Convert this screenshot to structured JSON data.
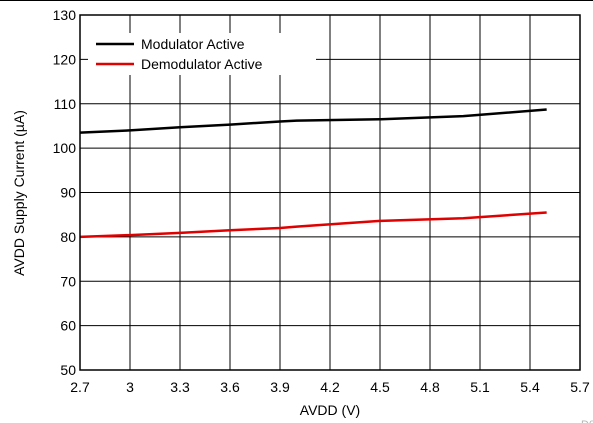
{
  "chart_data": {
    "type": "line",
    "title": "",
    "xlabel": "AVDD (V)",
    "ylabel": "AVDD Supply Current (µA)",
    "xlim": [
      2.7,
      5.7
    ],
    "ylim": [
      50,
      130
    ],
    "x_ticks": [
      2.7,
      3,
      3.3,
      3.6,
      3.9,
      4.2,
      4.5,
      4.8,
      5.1,
      5.4,
      5.7
    ],
    "x_tick_labels": [
      "2.7",
      "3",
      "3.3",
      "3.6",
      "3.9",
      "4.2",
      "4.5",
      "4.8",
      "5.1",
      "5.4",
      "5.7"
    ],
    "y_ticks": [
      50,
      60,
      70,
      80,
      90,
      100,
      110,
      120,
      130
    ],
    "y_tick_labels": [
      "50",
      "60",
      "70",
      "80",
      "90",
      "100",
      "110",
      "120",
      "130"
    ],
    "grid": true,
    "legend_position": "top-left",
    "series": [
      {
        "name": "Modulator Active",
        "color": "#000000",
        "x": [
          2.7,
          3.0,
          3.3,
          3.6,
          3.9,
          4.0,
          4.5,
          5.0,
          5.5
        ],
        "y": [
          103.5,
          104.0,
          104.7,
          105.3,
          106.0,
          106.2,
          106.5,
          107.2,
          108.7
        ]
      },
      {
        "name": "Demodulator Active",
        "color": "#e00000",
        "x": [
          2.7,
          3.0,
          3.3,
          3.6,
          3.9,
          4.0,
          4.5,
          5.0,
          5.5
        ],
        "y": [
          80.0,
          80.4,
          80.9,
          81.5,
          82.0,
          82.3,
          83.6,
          84.2,
          85.5
        ]
      }
    ],
    "watermark": "D0"
  }
}
